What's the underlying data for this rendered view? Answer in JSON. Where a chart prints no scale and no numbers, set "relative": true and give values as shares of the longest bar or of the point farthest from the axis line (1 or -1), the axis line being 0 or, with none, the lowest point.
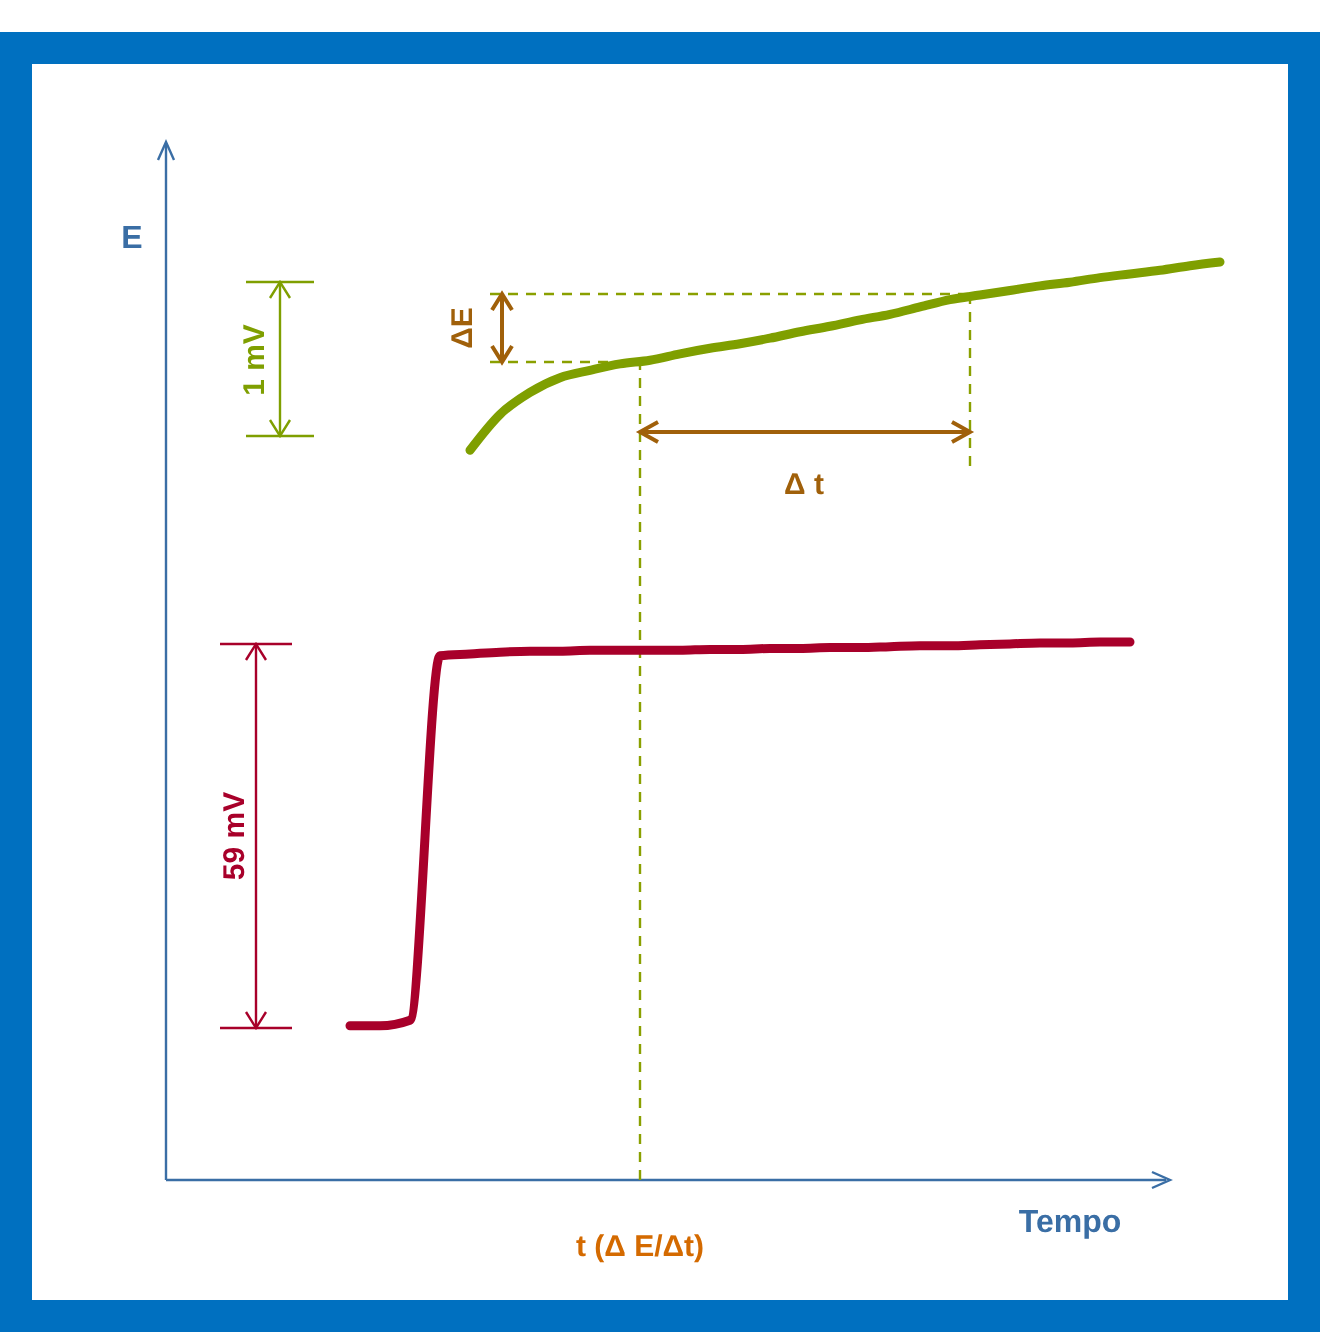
{
  "chart_data": {
    "type": "line",
    "relative": true,
    "xlabel": "Tempo",
    "ylabel": "E",
    "categories": [
      null,
      null,
      null,
      null,
      null,
      null,
      null,
      null,
      null,
      null,
      null,
      null,
      null,
      null,
      null,
      null,
      null,
      null,
      null,
      null,
      null,
      null,
      null,
      null,
      null,
      null,
      null,
      null,
      null,
      null,
      null,
      null,
      null,
      null,
      null,
      null
    ],
    "series": [
      {
        "color": "#a8002a",
        "values": [
          null,
          null,
          null,
          null,
          null,
          null,
          0.168,
          0.168,
          0.174,
          0.571,
          0.573,
          0.575,
          0.576,
          0.576,
          0.577,
          0.577,
          0.577,
          0.577,
          0.578,
          0.578,
          0.579,
          0.579,
          0.58,
          0.58,
          0.581,
          0.582,
          0.582,
          0.583,
          0.584,
          0.585,
          0.585,
          0.586,
          0.586,
          null,
          null,
          null
        ]
      },
      {
        "color": "#7f9f00",
        "values": [
          null,
          null,
          null,
          null,
          null,
          null,
          null,
          null,
          null,
          null,
          0.795,
          0.834,
          0.858,
          0.874,
          0.882,
          0.889,
          0.893,
          0.9,
          0.906,
          0.911,
          0.917,
          0.924,
          0.93,
          0.937,
          0.943,
          0.951,
          0.959,
          0.964,
          0.969,
          0.974,
          0.978,
          0.983,
          0.987,
          0.991,
          0.996,
          1
        ]
      }
    ],
    "annotations": [
      "1 mV",
      "ΔE",
      "Δ t",
      "59 mV",
      "t (Δ E/Δt)"
    ]
  }
}
